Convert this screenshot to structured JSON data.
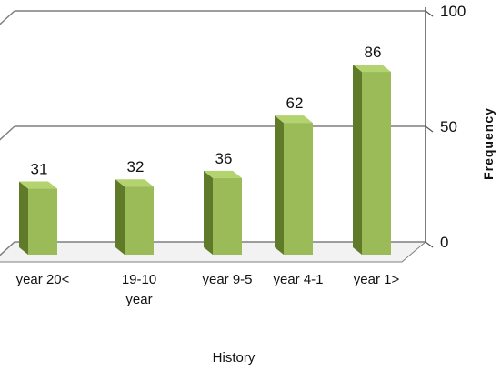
{
  "chart_data": {
    "type": "bar",
    "title": "",
    "xlabel": "History",
    "ylabel": "Frequency",
    "categories": [
      "year 20<",
      "19-10 year",
      "year 9-5",
      "year 4-1",
      "year 1>"
    ],
    "category_lines": [
      [
        "year 20<"
      ],
      [
        "19-10",
        "year"
      ],
      [
        "year 9-5"
      ],
      [
        "year 4-1"
      ],
      [
        "year 1>"
      ]
    ],
    "values": [
      31,
      32,
      36,
      62,
      86
    ],
    "yticks": [
      "0",
      "50",
      "100"
    ],
    "ylim": [
      0,
      100
    ],
    "grid": true,
    "legend": "none",
    "colors": {
      "bar_front": "#9bbb59",
      "bar_side": "#5f7b2a",
      "bar_top": "#b3d36e",
      "gridline": "#7f7f7f",
      "floor": "#f2f2f2"
    }
  }
}
